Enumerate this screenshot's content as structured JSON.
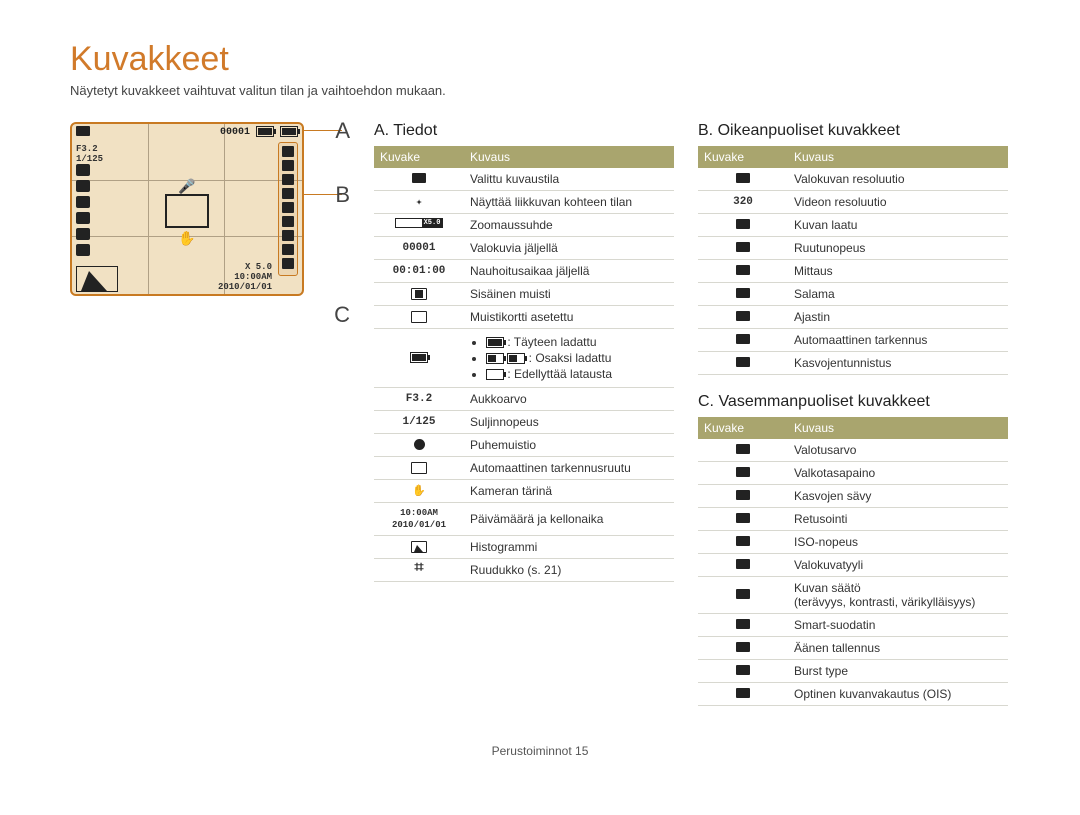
{
  "title": "Kuvakkeet",
  "subtitle": "Näytetyt kuvakkeet vaihtuvat valitun tilan ja vaihtoehdon mukaan.",
  "lcd": {
    "top_right": "00001",
    "f": "F3.2",
    "shutter": "1/125",
    "zoom": "X 5.0",
    "time": "10:00AM",
    "date": "2010/01/01"
  },
  "letters": {
    "a": "A",
    "b": "B",
    "c": "C"
  },
  "headers": {
    "icon": "Kuvake",
    "desc": "Kuvaus"
  },
  "sectionA": {
    "title": "A. Tiedot",
    "rows": [
      {
        "icon_type": "cam",
        "desc": "Valittu kuvaustila"
      },
      {
        "icon_type": "run",
        "desc": "Näyttää liikkuvan kohteen tilan"
      },
      {
        "icon_type": "zoombar",
        "desc": "Zoomaussuhde"
      },
      {
        "icon_text": "00001",
        "desc": "Valokuvia jäljellä"
      },
      {
        "icon_text": "00:01:00",
        "desc": "Nauhoitusaikaa jäljellä"
      },
      {
        "icon_type": "mem_in",
        "desc": "Sisäinen muisti"
      },
      {
        "icon_type": "mem_card",
        "desc": "Muistikortti asetettu"
      },
      {
        "icon_type": "battery",
        "desc_multi": {
          "full": ": Täyteen ladattu",
          "half": ": Osaksi ladattu",
          "low": ": Edellyttää latausta"
        }
      },
      {
        "icon_text": "F3.2",
        "desc": "Aukkoarvo"
      },
      {
        "icon_text": "1/125",
        "desc": "Suljinnopeus"
      },
      {
        "icon_type": "mic",
        "desc": "Puhemuistio"
      },
      {
        "icon_type": "frame",
        "desc": "Automaattinen tarkennusruutu"
      },
      {
        "icon_type": "shake",
        "desc": "Kameran tärinä"
      },
      {
        "icon_text2": "10:00AM\n2010/01/01",
        "desc": "Päivämäärä ja kellonaika"
      },
      {
        "icon_type": "hist",
        "desc": "Histogrammi"
      },
      {
        "icon_type": "grid",
        "desc": "Ruudukko (s. 21)"
      }
    ]
  },
  "sectionB": {
    "title": "B. Oikeanpuoliset kuvakkeet",
    "rows": [
      {
        "desc": "Valokuvan resoluutio"
      },
      {
        "icon_text": "320",
        "desc": "Videon resoluutio"
      },
      {
        "desc": "Kuvan laatu"
      },
      {
        "desc": "Ruutunopeus"
      },
      {
        "desc": "Mittaus"
      },
      {
        "desc": "Salama"
      },
      {
        "desc": "Ajastin"
      },
      {
        "desc": "Automaattinen tarkennus"
      },
      {
        "desc": "Kasvojentunnistus"
      }
    ]
  },
  "sectionC": {
    "title": "C. Vasemmanpuoliset kuvakkeet",
    "rows": [
      {
        "desc": "Valotusarvo"
      },
      {
        "desc": "Valkotasapaino"
      },
      {
        "desc": "Kasvojen sävy"
      },
      {
        "desc": "Retusointi"
      },
      {
        "desc": "ISO-nopeus"
      },
      {
        "desc": "Valokuvatyyli"
      },
      {
        "desc": "Kuvan säätö\n(terävyys, kontrasti, värikylläisyys)"
      },
      {
        "desc": "Smart-suodatin"
      },
      {
        "desc": "Äänen tallennus"
      },
      {
        "desc": "Burst type"
      },
      {
        "desc": "Optinen kuvanvakautus (OIS)"
      }
    ]
  },
  "pager": {
    "section": "Perustoiminnot",
    "page": "15"
  }
}
